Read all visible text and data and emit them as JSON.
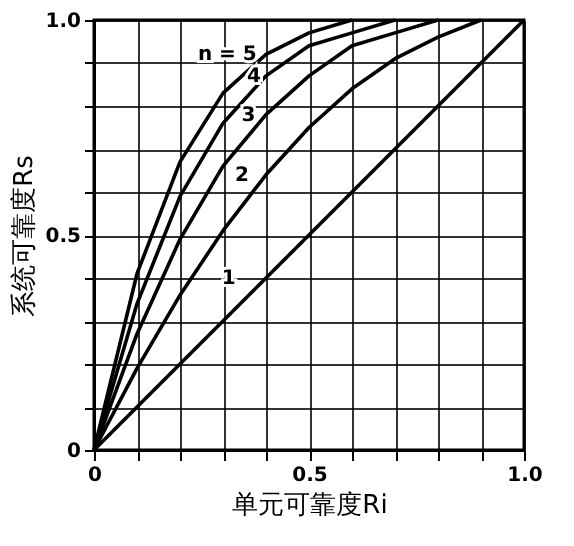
{
  "chart_data": {
    "type": "line",
    "xlabel": "单元可靠度Ri",
    "ylabel": "系统可靠度Rs",
    "x": [
      0,
      0.1,
      0.2,
      0.3,
      0.4,
      0.5,
      0.6,
      0.7,
      0.8,
      0.9,
      1.0
    ],
    "series": [
      {
        "color": "#000000",
        "values": [
          0,
          0.1,
          0.2,
          0.3,
          0.4,
          0.5,
          0.6,
          0.7,
          0.8,
          0.9,
          1.0
        ]
      },
      {
        "color": "#000000",
        "x": [
          0,
          0.1,
          0.2,
          0.3,
          0.4,
          0.5,
          0.6,
          0.7,
          0.8,
          0.9
        ],
        "values": [
          0,
          0.19,
          0.36,
          0.51,
          0.64,
          0.75,
          0.84,
          0.91,
          0.96,
          1.0
        ]
      },
      {
        "color": "#000000",
        "x": [
          0,
          0.1,
          0.2,
          0.3,
          0.4,
          0.5,
          0.6,
          0.7,
          0.8
        ],
        "values": [
          0,
          0.27,
          0.49,
          0.66,
          0.78,
          0.87,
          0.94,
          0.97,
          1.0
        ]
      },
      {
        "color": "#000000",
        "x": [
          0,
          0.1,
          0.2,
          0.3,
          0.4,
          0.5,
          0.6,
          0.7
        ],
        "values": [
          0,
          0.34,
          0.59,
          0.76,
          0.87,
          0.94,
          0.97,
          1.0
        ]
      },
      {
        "color": "#000000",
        "x": [
          0,
          0.1,
          0.2,
          0.3,
          0.4,
          0.5,
          0.6
        ],
        "values": [
          0,
          0.41,
          0.67,
          0.83,
          0.92,
          0.97,
          1.0
        ]
      }
    ],
    "annotations": [
      "1",
      "2",
      "3",
      "4",
      "n = 5"
    ],
    "xlim": [
      0,
      1
    ],
    "ylim": [
      0,
      1
    ],
    "xticks": [
      0,
      {
        "value": 0.1,
        "label": null
      },
      {
        "value": 0.2,
        "label": null
      },
      {
        "value": 0.3,
        "label": null
      },
      {
        "value": 0.4,
        "label": null
      },
      0.5,
      {
        "value": 0.6,
        "label": null
      },
      {
        "value": 0.7,
        "label": null
      },
      {
        "value": 0.8,
        "label": null
      },
      {
        "value": 0.9,
        "label": null
      },
      {
        "value": 1,
        "label": "1.0"
      }
    ],
    "yticks": [
      0,
      {
        "value": 0.1,
        "label": null
      },
      {
        "value": 0.2,
        "label": null
      },
      {
        "value": 0.3,
        "label": null
      },
      {
        "value": 0.4,
        "label": null
      },
      0.5,
      {
        "value": 0.6,
        "label": null
      },
      {
        "value": 0.7,
        "label": null
      },
      {
        "value": 0.8,
        "label": null
      },
      {
        "value": 0.9,
        "label": null
      },
      {
        "value": 1,
        "label": "1.0"
      }
    ],
    "grid": true,
    "marker": "none",
    "line_style": "solid"
  }
}
